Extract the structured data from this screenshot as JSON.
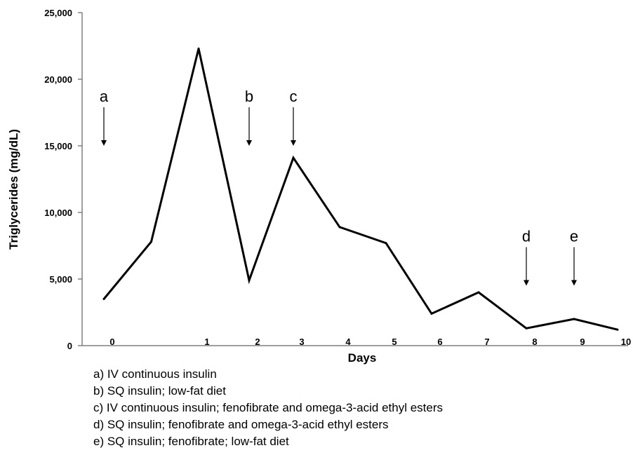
{
  "chart_data": {
    "type": "line",
    "xlabel": "Days",
    "ylabel": "Triglycerides (mg/dL)",
    "ylim": [
      0,
      25000
    ],
    "yticks": [
      0,
      5000,
      10000,
      15000,
      20000,
      25000
    ],
    "ytick_labels": [
      "0",
      "5,000",
      "10,000",
      "15,000",
      "20,000",
      "25,000"
    ],
    "grid": false,
    "points": [
      {
        "x": 0,
        "y": 3500
      },
      {
        "x": 0.5,
        "y": 7800
      },
      {
        "x": 1,
        "y": 22300
      },
      {
        "x": 2,
        "y": 4900
      },
      {
        "x": 3,
        "y": 14100
      },
      {
        "x": 4,
        "y": 8900
      },
      {
        "x": 5,
        "y": 7700
      },
      {
        "x": 6,
        "y": 2400
      },
      {
        "x": 7,
        "y": 4000
      },
      {
        "x": 8,
        "y": 1300
      },
      {
        "x": 9,
        "y": 2000
      },
      {
        "x": 10,
        "y": 1200
      }
    ],
    "x_tick_labels": [
      {
        "day": 0,
        "label": "0"
      },
      {
        "day": 1,
        "label": "1"
      },
      {
        "day": 2,
        "label": "2"
      },
      {
        "day": 3,
        "label": "3"
      },
      {
        "day": 4,
        "label": "4"
      },
      {
        "day": 5,
        "label": "5"
      },
      {
        "day": 6,
        "label": "6"
      },
      {
        "day": 7,
        "label": "7"
      },
      {
        "day": 8,
        "label": "8"
      },
      {
        "day": 9,
        "label": "9"
      },
      {
        "day": 10,
        "label": "10"
      }
    ],
    "annotations": [
      {
        "letter": "a",
        "day": 0,
        "points_to": 15000
      },
      {
        "letter": "b",
        "day": 2,
        "points_to": 15000
      },
      {
        "letter": "c",
        "day": 3,
        "points_to": 15000
      },
      {
        "letter": "d",
        "day": 8,
        "points_to": 4500
      },
      {
        "letter": "e",
        "day": 9,
        "points_to": 4500
      }
    ]
  },
  "legend": [
    "a) IV continuous insulin",
    "b) SQ insulin;  low-fat diet",
    "c) IV continuous insulin;  fenofibrate and omega-3-acid ethyl esters",
    "d) SQ insulin;  fenofibrate and omega-3-acid ethyl esters",
    "e) SQ insulin;  fenofibrate; low-fat diet"
  ],
  "colors": {
    "line": "#000000",
    "axis": "#7f7f7f",
    "text": "#000000"
  }
}
